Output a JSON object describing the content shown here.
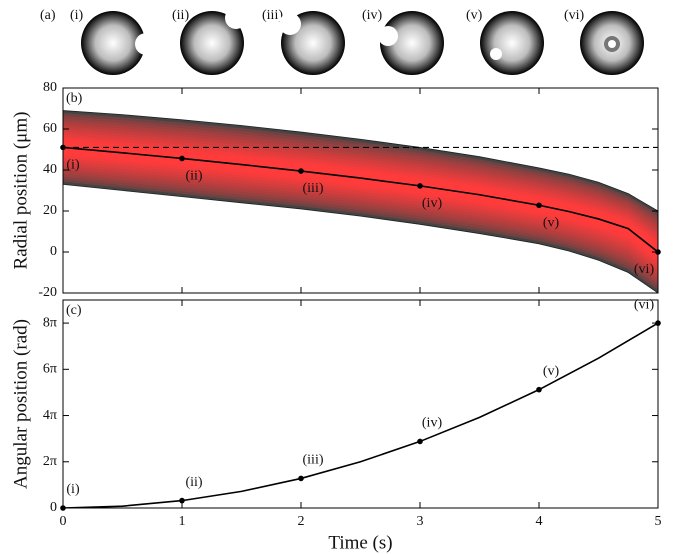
{
  "panel_a": {
    "label": "(a)",
    "items": [
      "(i)",
      "(ii)",
      "(iii)",
      "(iv)",
      "(v)",
      "(vi)"
    ]
  },
  "chart_data": [
    {
      "type": "line",
      "panel_label": "(b)",
      "ylabel": "Radial position (μm)",
      "x": [
        0,
        0.5,
        1,
        1.5,
        2,
        2.5,
        3,
        3.5,
        4,
        4.25,
        4.5,
        4.75,
        5
      ],
      "series": [
        {
          "color": "#000000",
          "values": [
            51,
            48.38,
            45.62,
            42.67,
            39.5,
            36.06,
            32.26,
            27.93,
            22.81,
            19.75,
            16.13,
            11.4,
            0
          ]
        }
      ],
      "band": {
        "color": "#ff3b3b",
        "edge_color": "#444444",
        "upper": [
          69,
          67,
          64.5,
          61.7,
          58.5,
          55,
          51,
          46.5,
          41,
          38,
          34,
          28.5,
          20
        ],
        "lower": [
          33,
          30,
          27,
          24,
          21,
          17.5,
          13.5,
          9,
          4,
          0.5,
          -4,
          -10,
          -20
        ]
      },
      "hline": 51,
      "markers": {
        "x": [
          0,
          1,
          2,
          3,
          4,
          5
        ],
        "values": [
          51,
          45.62,
          39.5,
          32.26,
          22.81,
          0
        ],
        "labels": [
          "(i)",
          "(ii)",
          "(iii)",
          "(iv)",
          "(v)",
          "(vi)"
        ]
      },
      "xlim": [
        0,
        5
      ],
      "xticks": [
        0,
        1,
        2,
        3,
        4,
        5
      ],
      "ylim": [
        -20,
        80
      ],
      "yticks": [
        -20,
        0,
        20,
        40,
        60,
        80
      ]
    },
    {
      "type": "line",
      "panel_label": "(c)",
      "ylabel": "Angular position (rad)",
      "xlabel": "Time (s)",
      "x": [
        0,
        0.5,
        1,
        1.5,
        2,
        2.5,
        3,
        3.5,
        4,
        4.5,
        5
      ],
      "series": [
        {
          "color": "#000000",
          "values": [
            0,
            0.2513,
            1.0053,
            2.2619,
            4.0212,
            6.2832,
            9.0478,
            12.315,
            16.085,
            20.3575,
            25.1327
          ]
        }
      ],
      "markers": {
        "x": [
          0,
          1,
          2,
          3,
          4,
          5
        ],
        "values": [
          0,
          1.0053,
          4.0212,
          9.0478,
          16.085,
          25.1327
        ],
        "labels": [
          "(i)",
          "(ii)",
          "(iii)",
          "(iv)",
          "(v)",
          "(vi)"
        ]
      },
      "xlim": [
        0,
        5
      ],
      "xticks": [
        0,
        1,
        2,
        3,
        4,
        5
      ],
      "ylim": [
        0,
        28.27
      ],
      "yticks": [
        0,
        {
          "value": 6.2832,
          "label": "2π"
        },
        {
          "value": 12.5664,
          "label": "4π"
        },
        {
          "value": 18.8496,
          "label": "6π"
        },
        {
          "value": 25.1327,
          "label": "8π"
        }
      ]
    }
  ]
}
